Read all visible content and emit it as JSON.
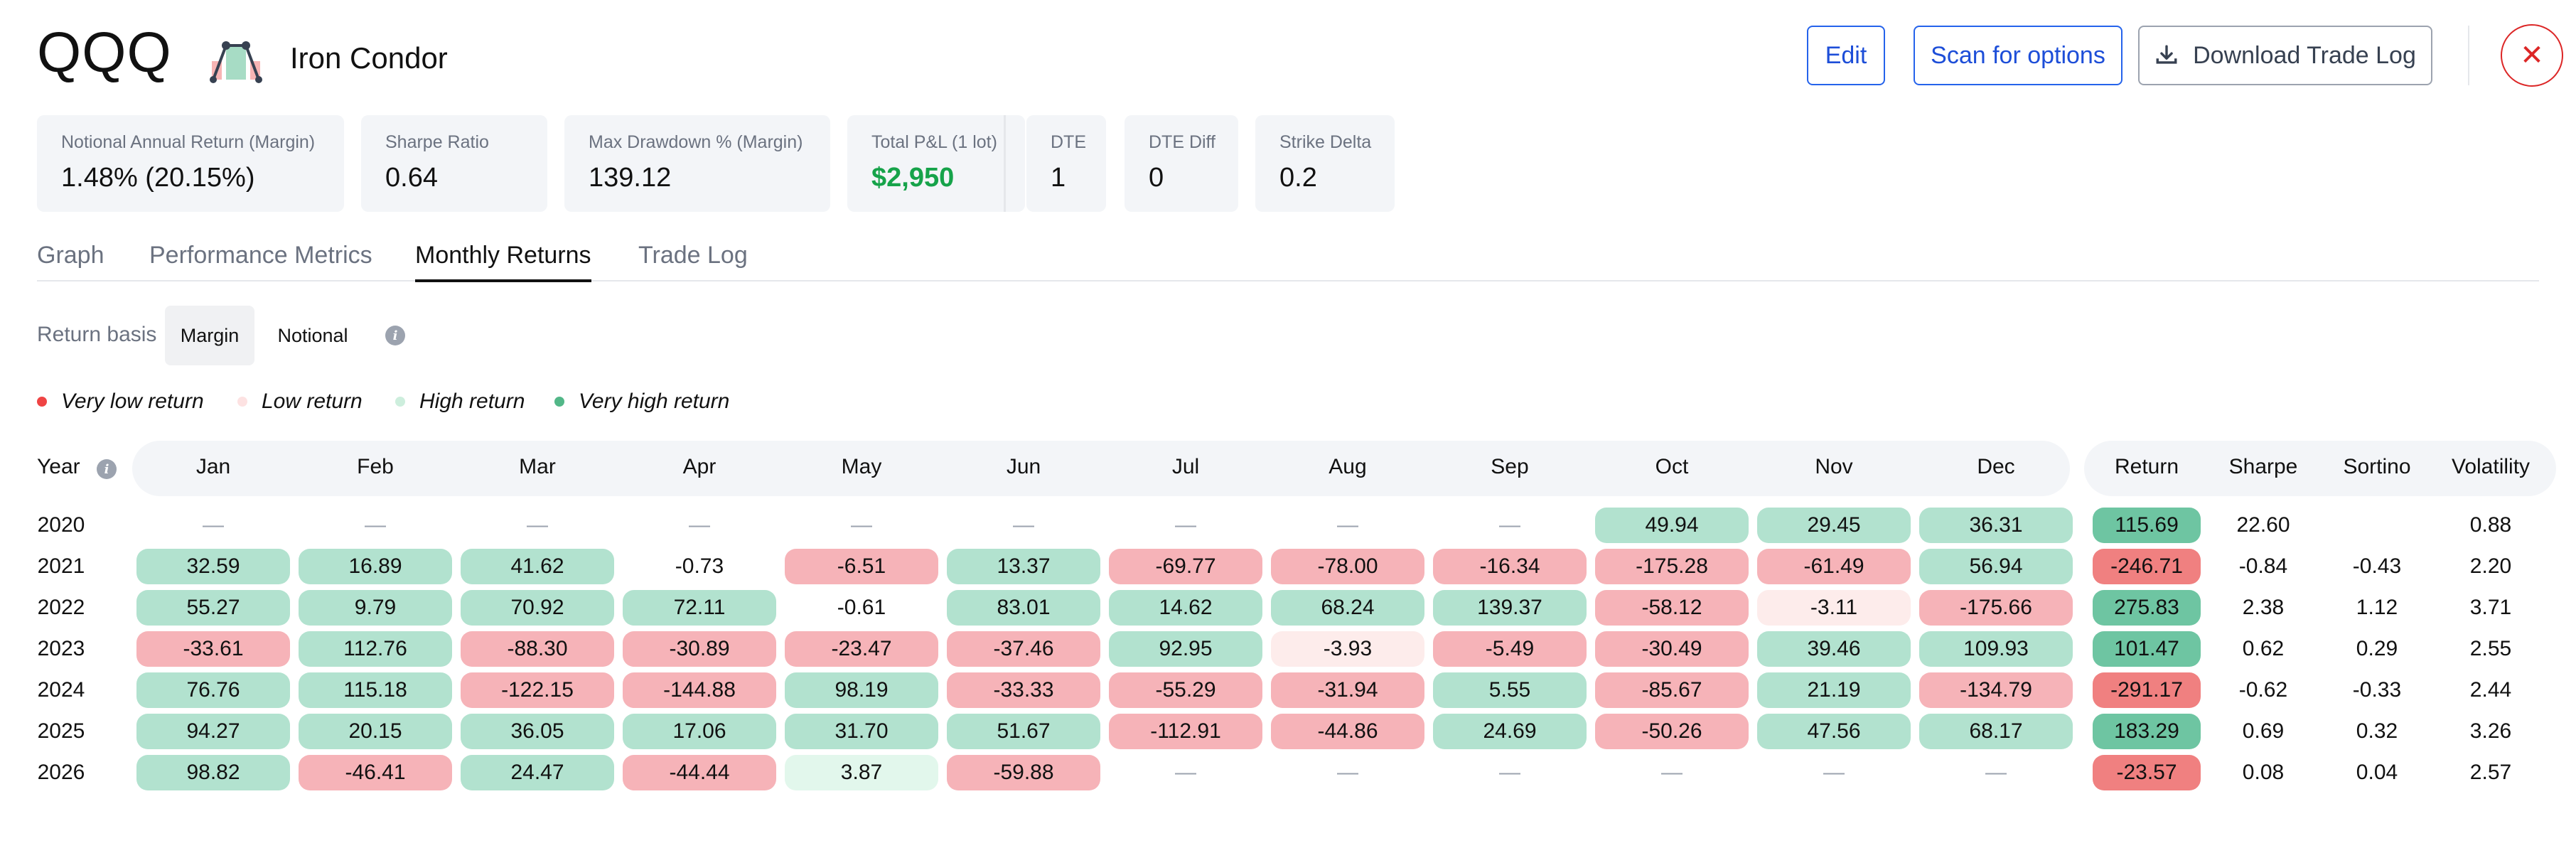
{
  "header": {
    "ticker": "QQQ",
    "strategy_icon": "iron-condor-icon",
    "strategy_name": "Iron Condor",
    "buttons": {
      "edit": "Edit",
      "scan": "Scan for options",
      "download": "Download Trade Log",
      "close_icon": "close-icon",
      "download_icon": "download-icon"
    }
  },
  "metrics": [
    {
      "label": "Notional Annual Return (Margin)",
      "value": "1.48% (20.15%)"
    },
    {
      "label": "Sharpe Ratio",
      "value": "0.64"
    },
    {
      "label": "Max Drawdown % (Margin)",
      "value": "139.12"
    },
    {
      "label": "Total P&L (1 lot)",
      "value": "$2,950"
    },
    {
      "label": "DTE",
      "value": "1"
    },
    {
      "label": "DTE Diff",
      "value": "0"
    },
    {
      "label": "Strike Delta",
      "value": "0.2"
    }
  ],
  "tabs": [
    "Graph",
    "Performance Metrics",
    "Monthly Returns",
    "Trade Log"
  ],
  "active_tab": "Monthly Returns",
  "basis": {
    "label": "Return basis",
    "options": [
      "Margin",
      "Notional"
    ],
    "selected": "Margin",
    "info_icon": "info-icon"
  },
  "legend": [
    {
      "label": "Very low return",
      "color": "#ef4444"
    },
    {
      "label": "Low return",
      "color": "#fde2e2"
    },
    {
      "label": "High return",
      "color": "#cdeedd"
    },
    {
      "label": "Very high return",
      "color": "#52b788"
    }
  ],
  "colors": {
    "very_low": "#f6b3b8",
    "low": "#fdeceb",
    "high": "#e2f7ec",
    "very_high": "#b2e2cf",
    "ret_neg": "#f08080",
    "ret_pos": "#6ec5a2",
    "positive_text": "#16a34a"
  },
  "table": {
    "headers": {
      "year": "Year",
      "months": [
        "Jan",
        "Feb",
        "Mar",
        "Apr",
        "May",
        "Jun",
        "Jul",
        "Aug",
        "Sep",
        "Oct",
        "Nov",
        "Dec"
      ],
      "stats": [
        "Return",
        "Sharpe",
        "Sortino",
        "Volatility"
      ]
    },
    "rows": [
      {
        "year": "2020",
        "months": [
          [
            "—",
            "none"
          ],
          [
            "—",
            "none"
          ],
          [
            "—",
            "none"
          ],
          [
            "—",
            "none"
          ],
          [
            "—",
            "none"
          ],
          [
            "—",
            "none"
          ],
          [
            "—",
            "none"
          ],
          [
            "—",
            "none"
          ],
          [
            "—",
            "none"
          ],
          [
            "49.94",
            "very_high"
          ],
          [
            "29.45",
            "very_high"
          ],
          [
            "36.31",
            "very_high"
          ]
        ],
        "return": [
          "115.69",
          "pos"
        ],
        "sharpe": "22.60",
        "sortino": "",
        "volatility": "0.88"
      },
      {
        "year": "2021",
        "months": [
          [
            "32.59",
            "very_high"
          ],
          [
            "16.89",
            "very_high"
          ],
          [
            "41.62",
            "very_high"
          ],
          [
            "-0.73",
            "plain"
          ],
          [
            "-6.51",
            "very_low"
          ],
          [
            "13.37",
            "very_high"
          ],
          [
            "-69.77",
            "very_low"
          ],
          [
            "-78.00",
            "very_low"
          ],
          [
            "-16.34",
            "very_low"
          ],
          [
            "-175.28",
            "very_low"
          ],
          [
            "-61.49",
            "very_low"
          ],
          [
            "56.94",
            "very_high"
          ]
        ],
        "return": [
          "-246.71",
          "neg"
        ],
        "sharpe": "-0.84",
        "sortino": "-0.43",
        "volatility": "2.20"
      },
      {
        "year": "2022",
        "months": [
          [
            "55.27",
            "very_high"
          ],
          [
            "9.79",
            "very_high"
          ],
          [
            "70.92",
            "very_high"
          ],
          [
            "72.11",
            "very_high"
          ],
          [
            "-0.61",
            "plain"
          ],
          [
            "83.01",
            "very_high"
          ],
          [
            "14.62",
            "very_high"
          ],
          [
            "68.24",
            "very_high"
          ],
          [
            "139.37",
            "very_high"
          ],
          [
            "-58.12",
            "very_low"
          ],
          [
            "-3.11",
            "low"
          ],
          [
            "-175.66",
            "very_low"
          ]
        ],
        "return": [
          "275.83",
          "pos"
        ],
        "sharpe": "2.38",
        "sortino": "1.12",
        "volatility": "3.71"
      },
      {
        "year": "2023",
        "months": [
          [
            "-33.61",
            "very_low"
          ],
          [
            "112.76",
            "very_high"
          ],
          [
            "-88.30",
            "very_low"
          ],
          [
            "-30.89",
            "very_low"
          ],
          [
            "-23.47",
            "very_low"
          ],
          [
            "-37.46",
            "very_low"
          ],
          [
            "92.95",
            "very_high"
          ],
          [
            "-3.93",
            "low"
          ],
          [
            "-5.49",
            "very_low"
          ],
          [
            "-30.49",
            "very_low"
          ],
          [
            "39.46",
            "very_high"
          ],
          [
            "109.93",
            "very_high"
          ]
        ],
        "return": [
          "101.47",
          "pos"
        ],
        "sharpe": "0.62",
        "sortino": "0.29",
        "volatility": "2.55"
      },
      {
        "year": "2024",
        "months": [
          [
            "76.76",
            "very_high"
          ],
          [
            "115.18",
            "very_high"
          ],
          [
            "-122.15",
            "very_low"
          ],
          [
            "-144.88",
            "very_low"
          ],
          [
            "98.19",
            "very_high"
          ],
          [
            "-33.33",
            "very_low"
          ],
          [
            "-55.29",
            "very_low"
          ],
          [
            "-31.94",
            "very_low"
          ],
          [
            "5.55",
            "very_high"
          ],
          [
            "-85.67",
            "very_low"
          ],
          [
            "21.19",
            "very_high"
          ],
          [
            "-134.79",
            "very_low"
          ]
        ],
        "return": [
          "-291.17",
          "neg"
        ],
        "sharpe": "-0.62",
        "sortino": "-0.33",
        "volatility": "2.44"
      },
      {
        "year": "2025",
        "months": [
          [
            "94.27",
            "very_high"
          ],
          [
            "20.15",
            "very_high"
          ],
          [
            "36.05",
            "very_high"
          ],
          [
            "17.06",
            "very_high"
          ],
          [
            "31.70",
            "very_high"
          ],
          [
            "51.67",
            "very_high"
          ],
          [
            "-112.91",
            "very_low"
          ],
          [
            "-44.86",
            "very_low"
          ],
          [
            "24.69",
            "very_high"
          ],
          [
            "-50.26",
            "very_low"
          ],
          [
            "47.56",
            "very_high"
          ],
          [
            "68.17",
            "very_high"
          ]
        ],
        "return": [
          "183.29",
          "pos"
        ],
        "sharpe": "0.69",
        "sortino": "0.32",
        "volatility": "3.26"
      },
      {
        "year": "2026",
        "months": [
          [
            "98.82",
            "very_high"
          ],
          [
            "-46.41",
            "very_low"
          ],
          [
            "24.47",
            "very_high"
          ],
          [
            "-44.44",
            "very_low"
          ],
          [
            "3.87",
            "high"
          ],
          [
            "-59.88",
            "very_low"
          ],
          [
            "—",
            "none"
          ],
          [
            "—",
            "none"
          ],
          [
            "—",
            "none"
          ],
          [
            "—",
            "none"
          ],
          [
            "—",
            "none"
          ],
          [
            "—",
            "none"
          ]
        ],
        "return": [
          "-23.57",
          "neg"
        ],
        "sharpe": "0.08",
        "sortino": "0.04",
        "volatility": "2.57"
      }
    ]
  }
}
